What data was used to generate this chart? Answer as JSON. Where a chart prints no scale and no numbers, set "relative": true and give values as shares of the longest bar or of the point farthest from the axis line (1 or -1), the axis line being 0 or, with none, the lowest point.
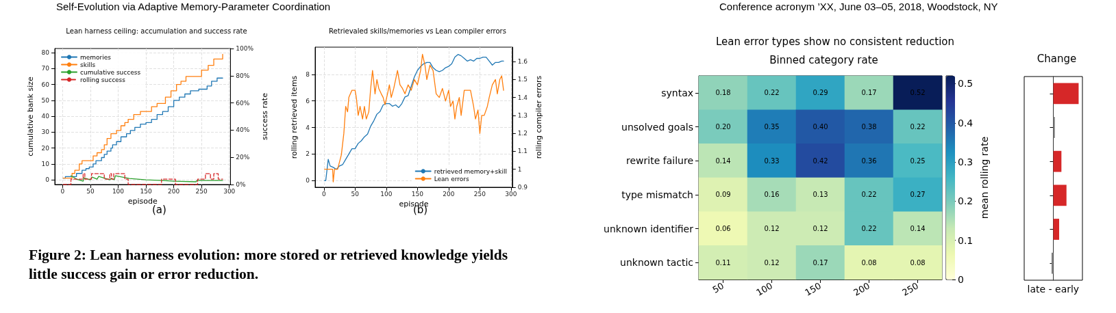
{
  "chart_data": [
    {
      "type": "line",
      "title": "Lean harness ceiling: accumulation and success rate",
      "xlabel": "episode",
      "ylabel": "cumulative bank size",
      "y2label": "success rate",
      "annotations": [
        "Self-Evolution via Adaptive Memory-Parameter Coordination",
        "(a)",
        "Figure 2: Lean harness evolution: more stored or retrieved knowledge yields little success gain or error reduction."
      ],
      "xlim": [
        -14,
        302
      ],
      "xticks": [
        0,
        50,
        100,
        150,
        200,
        250,
        300
      ],
      "ylim": [
        -3,
        82.6
      ],
      "yticks": [
        0,
        10,
        20,
        30,
        40,
        50,
        60,
        70,
        80
      ],
      "y2lim": [
        0,
        100
      ],
      "y2ticks": [
        {
          "value": 0,
          "label": "0%"
        },
        {
          "value": 20,
          "label": "20%"
        },
        {
          "value": 40,
          "label": "40%"
        },
        {
          "value": 60,
          "label": "60%"
        },
        {
          "value": 80,
          "label": "80%"
        },
        {
          "value": 100,
          "label": "100%"
        }
      ],
      "grid": true,
      "legend": "top left",
      "marker": "none",
      "series": [
        {
          "name": "memories",
          "type": "step",
          "color": "#1f77b4",
          "x": [
            1,
            5,
            25,
            35,
            42,
            48,
            55,
            60,
            70,
            75,
            80,
            87,
            90,
            97,
            105,
            115,
            122,
            130,
            140,
            150,
            160,
            170,
            180,
            190,
            200,
            210,
            220,
            230,
            245,
            260,
            268,
            278,
            288
          ],
          "values": [
            1,
            2,
            4,
            6,
            7,
            8,
            10,
            12,
            14,
            16,
            18,
            20,
            22,
            24,
            27,
            29,
            31,
            33,
            35,
            36,
            38,
            41,
            43,
            46,
            50,
            52,
            54,
            56,
            57,
            59,
            62,
            64,
            64
          ]
        },
        {
          "name": "skills",
          "type": "step",
          "color": "#ff7f0e",
          "x": [
            1,
            17,
            22,
            30,
            35,
            48,
            55,
            62,
            70,
            75,
            80,
            87,
            97,
            105,
            112,
            118,
            128,
            140,
            150,
            160,
            170,
            185,
            195,
            205,
            213,
            222,
            235,
            250,
            262,
            272,
            288
          ],
          "values": [
            1,
            4,
            6,
            10,
            12,
            12,
            15,
            17,
            19,
            22,
            26,
            29,
            31,
            34,
            36,
            38,
            41,
            43,
            43,
            46,
            48,
            52,
            56,
            60,
            62,
            65,
            65,
            69,
            72,
            76,
            79
          ]
        },
        {
          "name": "cumulative success",
          "type": "line",
          "color": "#2ca02c",
          "axis": "y2",
          "x": [
            15,
            25,
            37,
            38,
            50,
            53,
            62,
            65,
            85,
            88,
            93,
            95,
            120,
            150,
            180,
            200,
            240,
            242,
            270,
            288
          ],
          "values": [
            6.5,
            4,
            2.5,
            5,
            3.5,
            5.5,
            4,
            6,
            3.5,
            4.5,
            3.5,
            6.5,
            4.5,
            3.5,
            3,
            2.5,
            2,
            3,
            3,
            3
          ]
        },
        {
          "name": "rolling success",
          "type": "step",
          "color": "#d62728",
          "axis": "y2",
          "line_style": "dashed",
          "x": [
            1,
            15,
            37,
            40,
            52,
            75,
            85,
            88,
            92,
            112,
            118,
            178,
            203,
            243,
            257,
            266,
            272,
            280,
            288
          ],
          "values": [
            0,
            4,
            8,
            4,
            8,
            4,
            8,
            4,
            8,
            4,
            0,
            4,
            0,
            4,
            8,
            4,
            8,
            4,
            4
          ]
        }
      ]
    },
    {
      "type": "line",
      "title": "Retrievaled skills/memories vs Lean compiler errors",
      "xlabel": "episode",
      "ylabel": "rolling retrieved items",
      "y2label": "rolling compiler errors",
      "annotations": [
        "(b)"
      ],
      "xlim": [
        -14,
        302
      ],
      "xticks": [
        0,
        50,
        100,
        150,
        200,
        250,
        300
      ],
      "ylim": [
        -0.5,
        10.05
      ],
      "yticks": [
        0,
        2,
        4,
        6,
        8
      ],
      "y2lim": [
        0.9,
        1.68
      ],
      "y2ticks": [
        0.9,
        1.0,
        1.1,
        1.2,
        1.3,
        1.4,
        1.5,
        1.6
      ],
      "grid": true,
      "legend": "bottom right",
      "marker": "none",
      "series": [
        {
          "name": "retrieved memory+skill",
          "color": "#1f77b4",
          "x": [
            1,
            3,
            7,
            10,
            15,
            20,
            25,
            30,
            35,
            40,
            45,
            50,
            55,
            60,
            65,
            70,
            75,
            80,
            85,
            90,
            95,
            100,
            105,
            110,
            115,
            120,
            125,
            130,
            135,
            140,
            145,
            150,
            155,
            160,
            165,
            170,
            175,
            180,
            185,
            190,
            195,
            200,
            205,
            210,
            215,
            220,
            225,
            230,
            235,
            240,
            245,
            250,
            255,
            260,
            265,
            270,
            275,
            280,
            285,
            288
          ],
          "values": [
            0,
            0,
            1.6,
            1.1,
            1.0,
            0.85,
            1.1,
            1.2,
            1.6,
            2.0,
            2.4,
            2.4,
            2.8,
            3.0,
            3.3,
            3.5,
            4.1,
            4.5,
            5.0,
            5.2,
            5.7,
            5.8,
            5.8,
            5.6,
            5.7,
            5.5,
            5.8,
            6.3,
            6.4,
            7.1,
            7.8,
            8.3,
            8.6,
            8.8,
            8.9,
            8.9,
            8.5,
            8.3,
            8.2,
            8.3,
            8.5,
            8.6,
            8.8,
            9.3,
            9.5,
            9.4,
            9.2,
            9.0,
            9.1,
            9.0,
            9.2,
            9.2,
            9.3,
            9.3,
            9.0,
            8.7,
            8.9,
            8.9,
            9.0,
            9.0
          ]
        },
        {
          "name": "Lean errors",
          "color": "#ff7f0e",
          "axis": "y2",
          "x": [
            1,
            14,
            15,
            17,
            22,
            25,
            28,
            32,
            35,
            38,
            40,
            45,
            50,
            52,
            55,
            58,
            62,
            65,
            68,
            72,
            75,
            78,
            82,
            85,
            88,
            92,
            95,
            98,
            102,
            105,
            108,
            112,
            115,
            118,
            122,
            126,
            130,
            135,
            140,
            145,
            150,
            155,
            158,
            162,
            165,
            170,
            175,
            180,
            185,
            190,
            195,
            200,
            203,
            207,
            210,
            213,
            217,
            220,
            225,
            230,
            235,
            240,
            243,
            247,
            250,
            253,
            257,
            262,
            265,
            270,
            275,
            278,
            282,
            285,
            288
          ],
          "values": [
            1.0,
            1.0,
            0.93,
            1.0,
            1.0,
            1.04,
            1.08,
            1.2,
            1.35,
            1.32,
            1.4,
            1.44,
            1.44,
            1.4,
            1.3,
            1.35,
            1.28,
            1.35,
            1.28,
            1.32,
            1.45,
            1.55,
            1.42,
            1.5,
            1.45,
            1.42,
            1.4,
            1.36,
            1.42,
            1.47,
            1.4,
            1.45,
            1.5,
            1.55,
            1.47,
            1.45,
            1.42,
            1.47,
            1.44,
            1.5,
            1.47,
            1.55,
            1.64,
            1.58,
            1.5,
            1.58,
            1.55,
            1.42,
            1.4,
            1.45,
            1.38,
            1.44,
            1.35,
            1.38,
            1.28,
            1.35,
            1.4,
            1.3,
            1.44,
            1.44,
            1.44,
            1.35,
            1.28,
            1.33,
            1.2,
            1.3,
            1.3,
            1.35,
            1.4,
            1.47,
            1.5,
            1.42,
            1.5,
            1.52,
            1.44
          ]
        }
      ]
    },
    {
      "type": "heatmap",
      "title": "Lean error types show no consistent reduction",
      "subtitle": "Binned category rate",
      "clabel": "mean rolling rate",
      "annotations": [
        "Conference acronym ’XX, June 03–05, 2018, Woodstock, NY"
      ],
      "categories": [
        "50",
        "100",
        "150",
        "200",
        "250"
      ],
      "y_categories": [
        "syntax",
        "unsolved goals",
        "rewrite failure",
        "type mismatch",
        "unknown identifier",
        "unknown tactic"
      ],
      "cells": [
        [
          0.18,
          0.22,
          0.29,
          0.17,
          0.52
        ],
        [
          0.2,
          0.35,
          0.4,
          0.38,
          0.22
        ],
        [
          0.14,
          0.33,
          0.42,
          0.36,
          0.25
        ],
        [
          0.09,
          0.16,
          0.13,
          0.22,
          0.27
        ],
        [
          0.06,
          0.12,
          0.12,
          0.22,
          0.14
        ],
        [
          0.11,
          0.12,
          0.17,
          0.08,
          0.08
        ]
      ],
      "cell_labels": [
        [
          "0.18",
          "0.22",
          "0.29",
          "0.17",
          "0.52"
        ],
        [
          "0.20",
          "0.35",
          "0.40",
          "0.38",
          "0.22"
        ],
        [
          "0.14",
          "0.33",
          "0.42",
          "0.36",
          "0.25"
        ],
        [
          "0.09",
          "0.16",
          "0.13",
          "0.22",
          "0.27"
        ],
        [
          "0.06",
          "0.12",
          "0.12",
          "0.22",
          "0.14"
        ],
        [
          "0.11",
          "0.12",
          "0.17",
          "0.08",
          "0.08"
        ]
      ],
      "clim": [
        0,
        0.52
      ],
      "cticks": [
        0,
        0.1,
        0.2,
        0.3,
        0.4,
        0.5
      ]
    },
    {
      "type": "bar",
      "title": "Change",
      "xlabel": "late - early",
      "orientation": "horizontal",
      "relative": true,
      "categories": [
        null,
        null,
        null,
        null,
        null,
        null
      ],
      "values": [
        1,
        0.06,
        0.32,
        0.52,
        0.23,
        -0.07
      ],
      "colors": [
        "#d62728",
        "#808080",
        "#d62728",
        "#d62728",
        "#d62728",
        "#808080"
      ]
    }
  ]
}
